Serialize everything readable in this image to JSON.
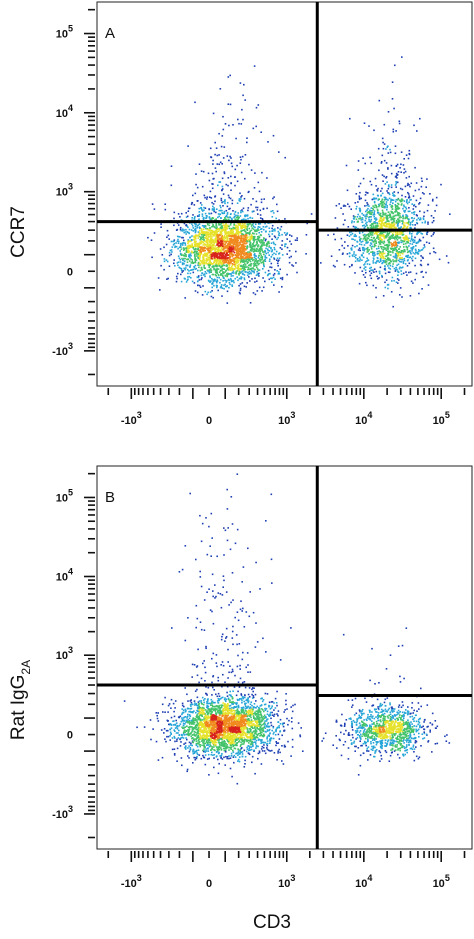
{
  "chart_data": [
    {
      "type": "scatter",
      "panel_label": "A",
      "xlabel": "",
      "ylabel": "CCR7",
      "x_scale": "biexponential",
      "y_scale": "biexponential",
      "x_ticks": [
        {
          "value": -1000,
          "base": "-10",
          "exp": "3"
        },
        {
          "value": 0,
          "base": "0",
          "exp": ""
        },
        {
          "value": 1000,
          "base": "10",
          "exp": "3"
        },
        {
          "value": 10000,
          "base": "10",
          "exp": "4"
        },
        {
          "value": 100000,
          "base": "10",
          "exp": "5"
        }
      ],
      "y_ticks": [
        {
          "value": -1000,
          "base": "-10",
          "exp": "3"
        },
        {
          "value": 0,
          "base": "0",
          "exp": ""
        },
        {
          "value": 1000,
          "base": "10",
          "exp": "3"
        },
        {
          "value": 10000,
          "base": "10",
          "exp": "4"
        },
        {
          "value": 100000,
          "base": "10",
          "exp": "5"
        }
      ],
      "quadrant_gates": {
        "x_divider": 2500,
        "y_left": 400,
        "y_right": 300
      },
      "populations": [
        {
          "name_hidden": "CD3- cluster",
          "x_center": 100,
          "y_center": 150,
          "density": "high"
        },
        {
          "name_hidden": "CD3+ cluster",
          "x_center": 20000,
          "y_center": 250,
          "density": "medium",
          "tail_y_max": 8000
        }
      ],
      "color_scale": [
        "#1f3fb4",
        "#27a6d8",
        "#43c36a",
        "#e6e22a",
        "#f08a1e",
        "#d8231c"
      ]
    },
    {
      "type": "scatter",
      "panel_label": "B",
      "xlabel": "CD3",
      "ylabel": "Rat IgG",
      "ylabel_sub": "2A",
      "x_scale": "biexponential",
      "y_scale": "biexponential",
      "x_ticks": [
        {
          "value": -1000,
          "base": "-10",
          "exp": "3"
        },
        {
          "value": 0,
          "base": "0",
          "exp": ""
        },
        {
          "value": 1000,
          "base": "10",
          "exp": "3"
        },
        {
          "value": 10000,
          "base": "10",
          "exp": "4"
        },
        {
          "value": 100000,
          "base": "10",
          "exp": "5"
        }
      ],
      "y_ticks": [
        {
          "value": -1000,
          "base": "-10",
          "exp": "3"
        },
        {
          "value": 0,
          "base": "0",
          "exp": ""
        },
        {
          "value": 1000,
          "base": "10",
          "exp": "3"
        },
        {
          "value": 10000,
          "base": "10",
          "exp": "4"
        },
        {
          "value": 100000,
          "base": "10",
          "exp": "5"
        }
      ],
      "quadrant_gates": {
        "x_divider": 2500,
        "y_left": 400,
        "y_right": 280
      },
      "populations": [
        {
          "name_hidden": "CD3- cluster",
          "x_center": 100,
          "y_center": 50,
          "density": "high",
          "tail_y_max": 150000
        },
        {
          "name_hidden": "CD3+ cluster",
          "x_center": 20000,
          "y_center": 30,
          "density": "medium"
        }
      ],
      "color_scale": [
        "#1f3fb4",
        "#27a6d8",
        "#43c36a",
        "#e6e22a",
        "#f08a1e",
        "#d8231c"
      ]
    }
  ]
}
